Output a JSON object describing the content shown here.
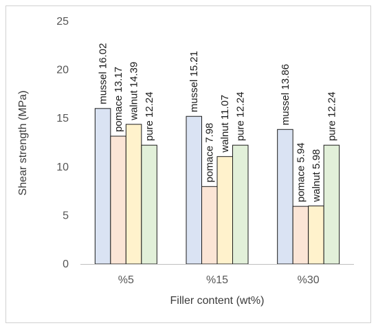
{
  "chart_data": {
    "type": "bar",
    "categories": [
      "%5",
      "%15",
      "%30"
    ],
    "series": [
      {
        "name": "mussel",
        "values": [
          16.02,
          15.21,
          13.86
        ],
        "color": "#dae3f3"
      },
      {
        "name": "pomace",
        "values": [
          13.17,
          7.98,
          5.94
        ],
        "color": "#fbe5d6"
      },
      {
        "name": "walnut",
        "values": [
          14.39,
          11.07,
          5.98
        ],
        "color": "#fff2cc"
      },
      {
        "name": "pure",
        "values": [
          12.24,
          12.24,
          12.24
        ],
        "color": "#e2f0d9"
      }
    ],
    "data_labels": [
      [
        "mussel 16.02",
        "pomace 13.17",
        "walnut 14.39",
        "pure 12.24"
      ],
      [
        "mussel 15.21",
        "pomace 7.98",
        "walnut 11.07",
        "pure 12.24"
      ],
      [
        "mussel 13.86",
        "pomace 5.94",
        "walnut 5.98",
        "pure 12.24"
      ]
    ],
    "xlabel": "Filler content (wt%)",
    "ylabel": "Shear strength (MPa)",
    "ylim": [
      0,
      25
    ],
    "yticks": [
      0,
      5,
      10,
      15,
      20,
      25
    ],
    "grid": false,
    "legend": "none",
    "bar_outline": "#1a1a1a"
  }
}
